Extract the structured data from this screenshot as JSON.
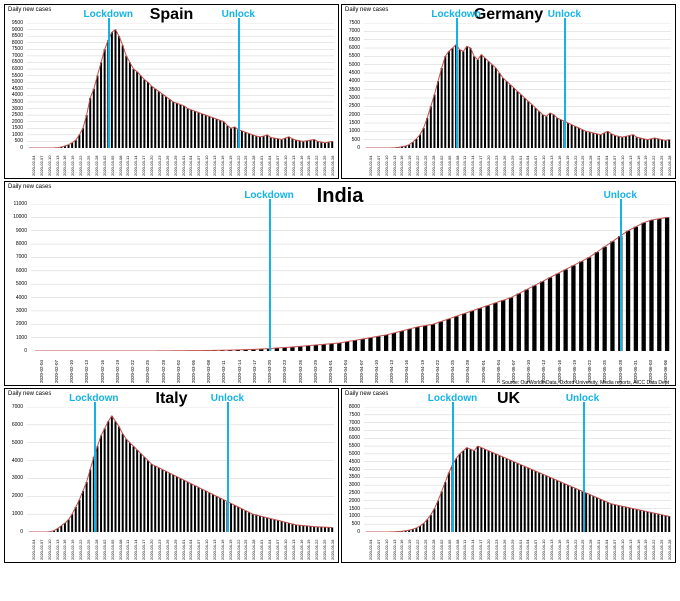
{
  "annotation_color": "#14b3e6",
  "bar_color": "#000000",
  "line_color": "#c0504d",
  "grid_color": "#d0d0d0",
  "background_color": "#ffffff",
  "y_axis_label": "Daily new cases",
  "source_text": "Source: OurWorldInData, Oxford University, Media reports, AICC Data Dept",
  "panels": {
    "spain": {
      "title": "Spain",
      "ylim": [
        0,
        9500
      ],
      "ytick_step": 500,
      "font_title": 16,
      "annotations": [
        {
          "label": "Lockdown",
          "x_idx": 22,
          "color": "#14b3e6"
        },
        {
          "label": "Unlock",
          "x_idx": 58,
          "color": "#14b3e6"
        }
      ],
      "dates": [
        "2020-02-04",
        "2020-02-07",
        "2020-02-10",
        "2020-02-13",
        "2020-02-16",
        "2020-02-19",
        "2020-02-22",
        "2020-02-25",
        "2020-02-28",
        "2020-03-02",
        "2020-03-05",
        "2020-03-08",
        "2020-03-11",
        "2020-03-14",
        "2020-03-17",
        "2020-03-20",
        "2020-03-23",
        "2020-03-26",
        "2020-03-29",
        "2020-04-01",
        "2020-04-04",
        "2020-04-07",
        "2020-04-10",
        "2020-04-13",
        "2020-04-16",
        "2020-04-19",
        "2020-04-22",
        "2020-04-25",
        "2020-04-28",
        "2020-05-01",
        "2020-05-04",
        "2020-05-07",
        "2020-05-10",
        "2020-05-13",
        "2020-05-16",
        "2020-05-19",
        "2020-05-22",
        "2020-05-25",
        "2020-05-28"
      ],
      "values": [
        0,
        0,
        0,
        0,
        0,
        0,
        0,
        10,
        30,
        80,
        150,
        250,
        400,
        600,
        1000,
        1500,
        2500,
        3800,
        4500,
        5500,
        6500,
        7500,
        8200,
        8800,
        9000,
        8500,
        7800,
        7000,
        6500,
        6000,
        5800,
        5500,
        5200,
        5000,
        4700,
        4500,
        4300,
        4100,
        3900,
        3700,
        3500,
        3400,
        3300,
        3200,
        3000,
        2900,
        2800,
        2700,
        2600,
        2500,
        2400,
        2300,
        2200,
        2100,
        2000,
        1700,
        1500,
        1600,
        1400,
        1300,
        1200,
        1100,
        1000,
        900,
        850,
        900,
        1000,
        800,
        750,
        700,
        650,
        750,
        850,
        700,
        600,
        550,
        500,
        550,
        600,
        650,
        500,
        450,
        400,
        450,
        500
      ]
    },
    "germany": {
      "title": "Germany",
      "ylim": [
        0,
        7500
      ],
      "ytick_step": 500,
      "font_title": 16,
      "annotations": [
        {
          "label": "Lockdown",
          "x_idx": 25,
          "color": "#14b3e6"
        },
        {
          "label": "Unlock",
          "x_idx": 55,
          "color": "#14b3e6"
        }
      ],
      "dates": [
        "2020-02-04",
        "2020-02-07",
        "2020-02-10",
        "2020-02-13",
        "2020-02-16",
        "2020-02-19",
        "2020-02-22",
        "2020-02-25",
        "2020-02-28",
        "2020-03-02",
        "2020-03-05",
        "2020-03-08",
        "2020-03-11",
        "2020-03-14",
        "2020-03-17",
        "2020-03-20",
        "2020-03-23",
        "2020-03-26",
        "2020-03-29",
        "2020-04-01",
        "2020-04-04",
        "2020-04-07",
        "2020-04-10",
        "2020-04-13",
        "2020-04-16",
        "2020-04-19",
        "2020-04-22",
        "2020-04-25",
        "2020-04-28",
        "2020-05-01",
        "2020-05-04",
        "2020-05-07",
        "2020-05-10",
        "2020-05-13",
        "2020-05-16",
        "2020-05-19",
        "2020-05-22",
        "2020-05-25",
        "2020-05-28"
      ],
      "values": [
        0,
        0,
        0,
        0,
        0,
        0,
        0,
        5,
        15,
        40,
        80,
        120,
        200,
        350,
        550,
        800,
        1200,
        1800,
        2500,
        3200,
        4000,
        4800,
        5500,
        5800,
        6000,
        6200,
        5900,
        5800,
        6100,
        6000,
        5500,
        5300,
        5600,
        5400,
        5200,
        5000,
        4800,
        4500,
        4200,
        4000,
        3800,
        3600,
        3400,
        3200,
        3000,
        2800,
        2600,
        2400,
        2200,
        2000,
        1900,
        2100,
        2000,
        1800,
        1700,
        1600,
        1500,
        1400,
        1300,
        1200,
        1100,
        1000,
        950,
        900,
        850,
        800,
        900,
        1000,
        850,
        750,
        700,
        650,
        700,
        750,
        800,
        650,
        600,
        550,
        500,
        550,
        600,
        550,
        500,
        450,
        500
      ]
    },
    "india": {
      "title": "India",
      "ylim": [
        0,
        11000
      ],
      "ytick_step": 1000,
      "font_title": 20,
      "annotations": [
        {
          "label": "Lockdown",
          "x_idx": 30,
          "color": "#14b3e6"
        },
        {
          "label": "Unlock",
          "x_idx": 75,
          "color": "#14b3e6"
        }
      ],
      "dates": [
        "2020-02-04",
        "2020-02-07",
        "2020-02-10",
        "2020-02-13",
        "2020-02-16",
        "2020-02-19",
        "2020-02-22",
        "2020-02-25",
        "2020-02-28",
        "2020-03-02",
        "2020-03-05",
        "2020-03-08",
        "2020-03-11",
        "2020-03-14",
        "2020-03-17",
        "2020-03-20",
        "2020-03-23",
        "2020-03-26",
        "2020-03-29",
        "2020-04-01",
        "2020-04-04",
        "2020-04-07",
        "2020-04-10",
        "2020-04-13",
        "2020-04-16",
        "2020-04-19",
        "2020-04-22",
        "2020-04-25",
        "2020-04-28",
        "2020-05-01",
        "2020-05-04",
        "2020-05-07",
        "2020-05-10",
        "2020-05-13",
        "2020-05-16",
        "2020-05-19",
        "2020-05-22",
        "2020-05-25",
        "2020-05-28",
        "2020-05-31",
        "2020-06-03",
        "2020-06-06"
      ],
      "values": [
        0,
        0,
        0,
        0,
        0,
        0,
        0,
        0,
        0,
        0,
        0,
        0,
        0,
        0,
        0,
        0,
        5,
        10,
        15,
        20,
        25,
        30,
        40,
        50,
        60,
        70,
        80,
        100,
        120,
        150,
        180,
        220,
        260,
        300,
        350,
        400,
        450,
        500,
        550,
        600,
        700,
        800,
        900,
        1000,
        1100,
        1200,
        1350,
        1500,
        1650,
        1800,
        1900,
        2000,
        2200,
        2400,
        2600,
        2800,
        3000,
        3200,
        3400,
        3600,
        3800,
        4000,
        4300,
        4600,
        4900,
        5200,
        5500,
        5800,
        6100,
        6400,
        6700,
        7000,
        7400,
        7800,
        8200,
        8600,
        9000,
        9300,
        9600,
        9800,
        9900,
        10000
      ]
    },
    "italy": {
      "title": "Italy",
      "ylim": [
        0,
        7000
      ],
      "ytick_step": 1000,
      "font_title": 16,
      "annotations": [
        {
          "label": "Lockdown",
          "x_idx": 18,
          "color": "#14b3e6"
        },
        {
          "label": "Unlock",
          "x_idx": 55,
          "color": "#14b3e6"
        }
      ],
      "dates": [
        "2020-02-04",
        "2020-02-07",
        "2020-02-10",
        "2020-02-13",
        "2020-02-16",
        "2020-02-19",
        "2020-02-22",
        "2020-02-25",
        "2020-02-28",
        "2020-03-02",
        "2020-03-05",
        "2020-03-08",
        "2020-03-11",
        "2020-03-14",
        "2020-03-17",
        "2020-03-20",
        "2020-03-23",
        "2020-03-26",
        "2020-03-29",
        "2020-04-01",
        "2020-04-04",
        "2020-04-07",
        "2020-04-10",
        "2020-04-13",
        "2020-04-16",
        "2020-04-19",
        "2020-04-22",
        "2020-04-25",
        "2020-04-28",
        "2020-05-01",
        "2020-05-04",
        "2020-05-07",
        "2020-05-10",
        "2020-05-13",
        "2020-05-16",
        "2020-05-19",
        "2020-05-22",
        "2020-05-25",
        "2020-05-28"
      ],
      "values": [
        0,
        0,
        0,
        0,
        0,
        0,
        20,
        80,
        200,
        350,
        500,
        700,
        1000,
        1400,
        1800,
        2300,
        2800,
        3500,
        4200,
        4800,
        5400,
        5800,
        6200,
        6500,
        6200,
        5900,
        5500,
        5200,
        5000,
        4800,
        4600,
        4400,
        4200,
        4000,
        3800,
        3700,
        3600,
        3500,
        3400,
        3300,
        3200,
        3100,
        3000,
        2900,
        2800,
        2700,
        2600,
        2500,
        2400,
        2300,
        2200,
        2100,
        2000,
        1900,
        1800,
        1700,
        1600,
        1500,
        1400,
        1300,
        1200,
        1100,
        1000,
        950,
        900,
        850,
        800,
        750,
        700,
        650,
        600,
        550,
        500,
        450,
        400,
        380,
        360,
        340,
        320,
        300,
        290,
        280,
        270,
        260,
        250
      ]
    },
    "uk": {
      "title": "UK",
      "ylim": [
        0,
        8000
      ],
      "ytick_step": 500,
      "font_title": 16,
      "annotations": [
        {
          "label": "Lockdown",
          "x_idx": 24,
          "color": "#14b3e6"
        },
        {
          "label": "Unlock",
          "x_idx": 60,
          "color": "#14b3e6"
        }
      ],
      "dates": [
        "2020-02-04",
        "2020-02-07",
        "2020-02-10",
        "2020-02-13",
        "2020-02-16",
        "2020-02-19",
        "2020-02-22",
        "2020-02-25",
        "2020-02-28",
        "2020-03-02",
        "2020-03-05",
        "2020-03-08",
        "2020-03-11",
        "2020-03-14",
        "2020-03-17",
        "2020-03-20",
        "2020-03-23",
        "2020-03-26",
        "2020-03-29",
        "2020-04-01",
        "2020-04-04",
        "2020-04-07",
        "2020-04-10",
        "2020-04-13",
        "2020-04-16",
        "2020-04-19",
        "2020-04-22",
        "2020-04-25",
        "2020-04-28",
        "2020-05-01",
        "2020-05-04",
        "2020-05-07",
        "2020-05-10",
        "2020-05-13",
        "2020-05-16",
        "2020-05-19",
        "2020-05-22",
        "2020-05-25",
        "2020-05-28"
      ],
      "values": [
        0,
        0,
        0,
        0,
        0,
        0,
        0,
        5,
        15,
        30,
        50,
        80,
        120,
        180,
        260,
        380,
        550,
        800,
        1100,
        1500,
        2000,
        2600,
        3200,
        3800,
        4300,
        4700,
        5000,
        5200,
        5400,
        5300,
        5200,
        5500,
        5400,
        5300,
        5200,
        5100,
        5000,
        4900,
        4800,
        4700,
        4600,
        4500,
        4400,
        4300,
        4200,
        4100,
        4000,
        3900,
        3800,
        3700,
        3600,
        3500,
        3400,
        3300,
        3200,
        3100,
        3000,
        2900,
        2800,
        2700,
        2600,
        2500,
        2400,
        2300,
        2200,
        2100,
        2000,
        1900,
        1800,
        1750,
        1700,
        1650,
        1600,
        1550,
        1500,
        1450,
        1400,
        1350,
        1300,
        1250,
        1200,
        1150,
        1100,
        1050,
        1000
      ]
    }
  }
}
